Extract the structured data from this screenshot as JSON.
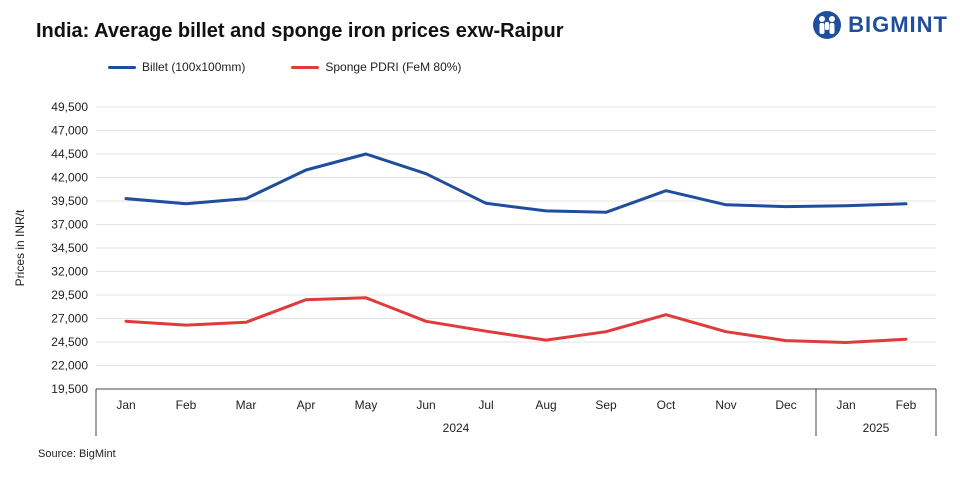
{
  "title": "India: Average billet and sponge iron prices exw-Raipur",
  "brand": {
    "name": "BIGMINT",
    "color": "#1f4e9c",
    "icon": "bigmint-logo-icon"
  },
  "source": "Source: BigMint",
  "chart_data": {
    "type": "line",
    "categories": [
      "Jan",
      "Feb",
      "Mar",
      "Apr",
      "May",
      "Jun",
      "Jul",
      "Aug",
      "Sep",
      "Oct",
      "Nov",
      "Dec",
      "Jan",
      "Feb"
    ],
    "year_groups": [
      {
        "label": "2024",
        "count": 12
      },
      {
        "label": "2025",
        "count": 2
      }
    ],
    "series": [
      {
        "name": "Billet (100x100mm)",
        "color": "#1f4e9c",
        "values": [
          39750,
          39200,
          39750,
          42800,
          44500,
          42400,
          39250,
          38450,
          38300,
          40600,
          39100,
          38900,
          39000,
          39200
        ]
      },
      {
        "name": "Sponge PDRI (FeM 80%)",
        "color": "#e03a3a",
        "values": [
          26700,
          26300,
          26600,
          29000,
          29200,
          26700,
          25650,
          24700,
          25600,
          27400,
          25600,
          24650,
          24450,
          24800
        ]
      }
    ],
    "ylabel": "Prices in INR/t",
    "ylim": [
      19500,
      49500
    ],
    "yticks": [
      "19,500",
      "22,000",
      "24,500",
      "27,000",
      "29,500",
      "32,000",
      "34,500",
      "37,000",
      "39,500",
      "42,000",
      "44,500",
      "47,000",
      "49,500"
    ],
    "grid": true,
    "legend": "top-left"
  }
}
